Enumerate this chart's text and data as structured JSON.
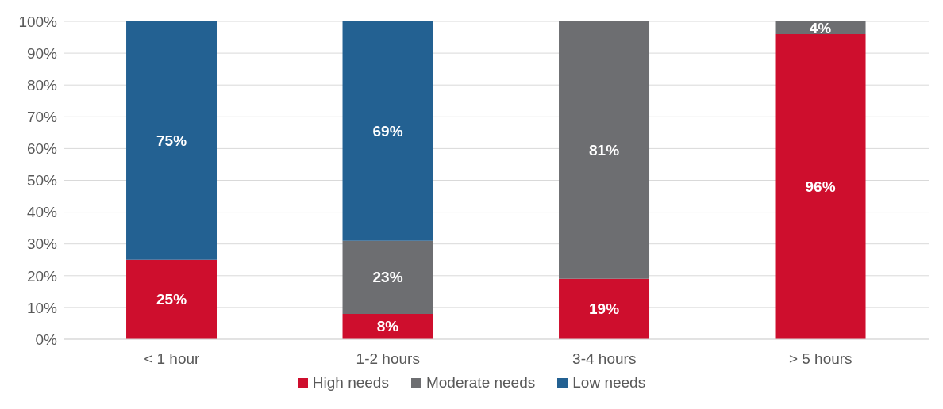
{
  "chart_data": {
    "type": "bar",
    "stacked": true,
    "categories": [
      "< 1 hour",
      "1-2 hours",
      "3-4 hours",
      "> 5 hours"
    ],
    "series": [
      {
        "name": "High needs",
        "color": "#ce0e2d",
        "values": [
          25,
          8,
          19,
          96
        ],
        "value_labels": [
          "25%",
          "8%",
          "19%",
          "96%"
        ]
      },
      {
        "name": "Moderate needs",
        "color": "#6d6e71",
        "values": [
          null,
          23,
          81,
          4
        ],
        "value_labels": [
          null,
          "23%",
          "81%",
          "4%"
        ]
      },
      {
        "name": "Low needs",
        "color": "#236192",
        "values": [
          75,
          69,
          null,
          null
        ],
        "value_labels": [
          "75%",
          "69%",
          null,
          null
        ]
      }
    ],
    "ylim": [
      0,
      100
    ],
    "yticks": [
      {
        "value": 0,
        "label": "0%"
      },
      {
        "value": 10,
        "label": "10%"
      },
      {
        "value": 20,
        "label": "20%"
      },
      {
        "value": 30,
        "label": "30%"
      },
      {
        "value": 40,
        "label": "40%"
      },
      {
        "value": 50,
        "label": "50%"
      },
      {
        "value": 60,
        "label": "60%"
      },
      {
        "value": 70,
        "label": "70%"
      },
      {
        "value": 80,
        "label": "80%"
      },
      {
        "value": 90,
        "label": "90%"
      },
      {
        "value": 100,
        "label": "100%"
      }
    ],
    "grid": "y",
    "legend": "bottom"
  }
}
